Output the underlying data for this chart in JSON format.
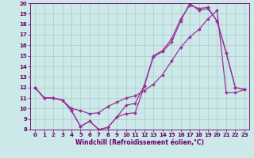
{
  "x_hours": [
    0,
    1,
    2,
    3,
    4,
    5,
    6,
    7,
    8,
    9,
    10,
    11,
    12,
    13,
    14,
    15,
    16,
    17,
    18,
    19,
    20,
    21,
    22,
    23
  ],
  "line1": [
    12,
    11,
    11,
    10.8,
    9.8,
    8.3,
    8.8,
    8.0,
    8.2,
    9.2,
    9.5,
    9.6,
    12.1,
    14.9,
    15.4,
    16.3,
    18.3,
    20.0,
    19.3,
    19.5,
    18.3,
    15.3,
    12.0,
    11.8
  ],
  "line2": [
    12,
    11,
    11,
    10.8,
    10.0,
    9.8,
    9.5,
    9.6,
    10.2,
    10.6,
    11.0,
    11.2,
    11.7,
    12.3,
    13.2,
    14.5,
    15.8,
    16.8,
    17.5,
    18.5,
    19.3,
    11.5,
    11.5,
    11.8
  ],
  "line3": [
    12,
    11,
    11,
    10.8,
    9.8,
    8.3,
    8.8,
    8.0,
    8.2,
    9.2,
    10.3,
    10.5,
    12.2,
    15.0,
    15.5,
    16.6,
    18.5,
    19.8,
    19.5,
    19.6,
    18.3,
    15.3,
    12.0,
    11.8
  ],
  "line_color": "#993399",
  "bg_color": "#cce8e8",
  "grid_color": "#aacccc",
  "xlabel": "Windchill (Refroidissement éolien,°C)",
  "ylim": [
    8,
    20
  ],
  "xlim": [
    -0.5,
    23.5
  ],
  "yticks": [
    8,
    9,
    10,
    11,
    12,
    13,
    14,
    15,
    16,
    17,
    18,
    19,
    20
  ],
  "xticks": [
    0,
    1,
    2,
    3,
    4,
    5,
    6,
    7,
    8,
    9,
    10,
    11,
    12,
    13,
    14,
    15,
    16,
    17,
    18,
    19,
    20,
    21,
    22,
    23
  ],
  "tick_color": "#660066",
  "tick_fontsize": 5.0,
  "xlabel_fontsize": 5.5,
  "marker_size": 2.0,
  "line_width": 0.9
}
